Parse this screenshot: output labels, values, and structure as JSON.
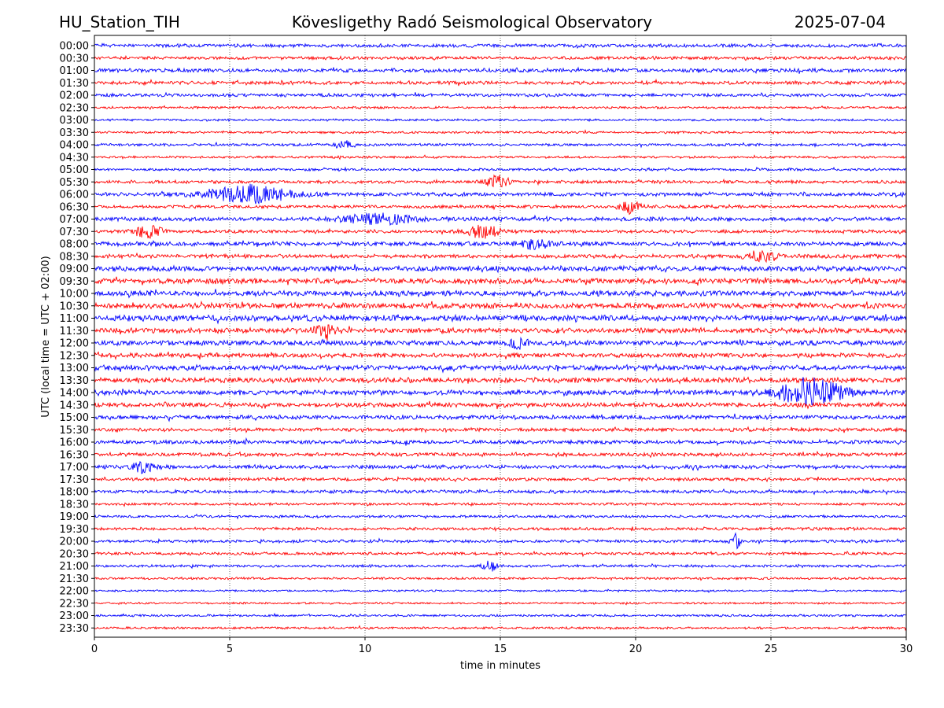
{
  "header": {
    "station": "HU_Station_TIH",
    "observatory": "Kövesligethy Radó Seismological Observatory",
    "date": "2025-07-04"
  },
  "chart_data": {
    "type": "line",
    "title": "Kövesligethy Radó Seismological Observatory",
    "xlabel": "time in minutes",
    "ylabel": "UTC (local time = UTC + 02:00)",
    "xlim": [
      0,
      30
    ],
    "x_ticks": [
      "0",
      "5",
      "10",
      "15",
      "20",
      "25",
      "30"
    ],
    "x_tick_values": [
      0,
      5,
      10,
      15,
      20,
      25,
      30
    ],
    "vertical_gridlines_at": [
      5,
      10,
      15,
      20,
      25
    ],
    "grid": "dotted vertical",
    "row_labels": [
      "00:00",
      "00:30",
      "01:00",
      "01:30",
      "02:00",
      "02:30",
      "03:00",
      "03:30",
      "04:00",
      "04:30",
      "05:00",
      "05:30",
      "06:00",
      "06:30",
      "07:00",
      "07:30",
      "08:00",
      "08:30",
      "09:00",
      "09:30",
      "10:00",
      "10:30",
      "11:00",
      "11:30",
      "12:00",
      "12:30",
      "13:00",
      "13:30",
      "14:00",
      "14:30",
      "15:00",
      "15:30",
      "16:00",
      "16:30",
      "17:00",
      "17:30",
      "18:00",
      "18:30",
      "19:00",
      "19:30",
      "20:00",
      "20:30",
      "21:00",
      "21:30",
      "22:00",
      "22:30",
      "23:00",
      "23:30"
    ],
    "trace_colors": [
      "#0000ff",
      "#ff0000"
    ],
    "noise_amplitude": [
      0.55,
      0.5,
      0.6,
      0.55,
      0.5,
      0.35,
      0.35,
      0.35,
      0.4,
      0.35,
      0.4,
      0.5,
      0.6,
      0.5,
      0.65,
      0.5,
      0.65,
      0.6,
      0.8,
      0.85,
      0.85,
      0.85,
      0.9,
      0.8,
      0.75,
      0.7,
      0.8,
      0.8,
      0.75,
      0.7,
      0.65,
      0.55,
      0.6,
      0.55,
      0.6,
      0.5,
      0.5,
      0.4,
      0.4,
      0.45,
      0.45,
      0.45,
      0.4,
      0.35,
      0.3,
      0.3,
      0.35,
      0.35
    ],
    "events": [
      {
        "row": 8,
        "minute": 9.2,
        "amplitude": 1.1,
        "duration": 0.3
      },
      {
        "row": 11,
        "minute": 14.9,
        "amplitude": 1.5,
        "duration": 0.4
      },
      {
        "row": 12,
        "minute": 5.8,
        "amplitude": 2.0,
        "duration": 1.5
      },
      {
        "row": 13,
        "minute": 19.8,
        "amplitude": 1.3,
        "duration": 0.4
      },
      {
        "row": 14,
        "minute": 10.5,
        "amplitude": 1.0,
        "duration": 1.5
      },
      {
        "row": 15,
        "minute": 2.0,
        "amplitude": 1.4,
        "duration": 0.5
      },
      {
        "row": 15,
        "minute": 14.4,
        "amplitude": 1.6,
        "duration": 0.6
      },
      {
        "row": 16,
        "minute": 16.3,
        "amplitude": 1.3,
        "duration": 0.5
      },
      {
        "row": 17,
        "minute": 24.7,
        "amplitude": 1.5,
        "duration": 0.5
      },
      {
        "row": 23,
        "minute": 8.5,
        "amplitude": 1.8,
        "duration": 0.4
      },
      {
        "row": 24,
        "minute": 15.7,
        "amplitude": 1.3,
        "duration": 0.3
      },
      {
        "row": 28,
        "minute": 26.5,
        "amplitude": 3.0,
        "duration": 1.2
      },
      {
        "row": 34,
        "minute": 1.8,
        "amplitude": 1.3,
        "duration": 0.4
      },
      {
        "row": 40,
        "minute": 23.7,
        "amplitude": 2.6,
        "duration": 0.15
      },
      {
        "row": 42,
        "minute": 14.6,
        "amplitude": 1.3,
        "duration": 0.25
      }
    ]
  }
}
